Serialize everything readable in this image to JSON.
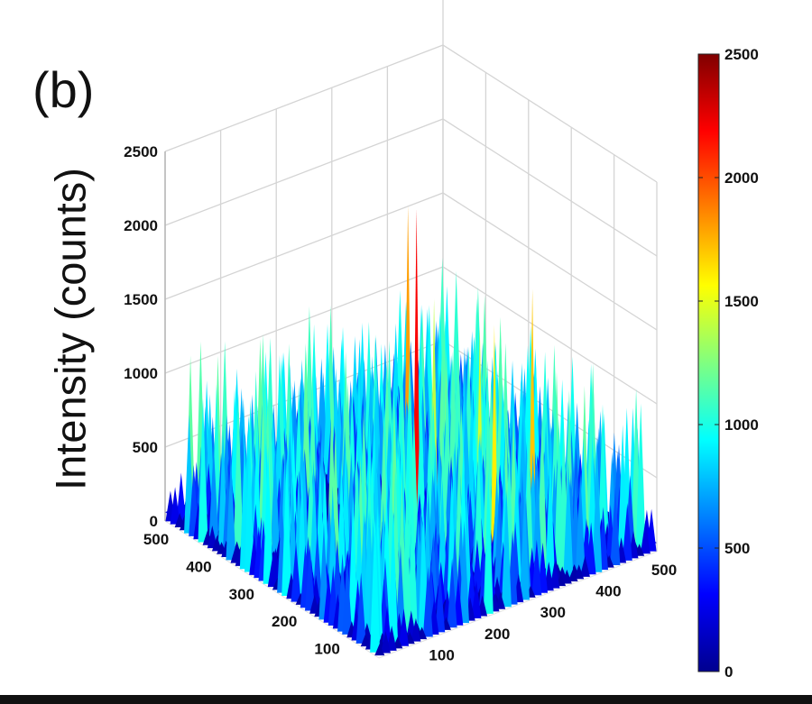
{
  "panel_label": "(b)",
  "chart_data": {
    "type": "surface3d",
    "zlabel": "Intensity (counts)",
    "z_ticks": [
      "0",
      "500",
      "1000",
      "1500",
      "2000",
      "2500"
    ],
    "x_ticks": [
      "100",
      "200",
      "300",
      "400",
      "500"
    ],
    "y_ticks": [
      "100",
      "200",
      "300",
      "400",
      "500"
    ],
    "xlim": [
      0,
      500
    ],
    "ylim": [
      0,
      500
    ],
    "zlim": [
      0,
      2500
    ],
    "colorbar": {
      "range": [
        0,
        2500
      ],
      "ticks": [
        "0",
        "500",
        "1000",
        "1500",
        "2000",
        "2500"
      ],
      "colormap": "jet"
    },
    "peaks": [
      {
        "x": 260,
        "y": 250,
        "z": 2200
      },
      {
        "x": 360,
        "y": 400,
        "z": 1800
      },
      {
        "x": 380,
        "y": 135,
        "z": 1700
      },
      {
        "x": 300,
        "y": 120,
        "z": 1600
      },
      {
        "x": 320,
        "y": 180,
        "z": 1450
      },
      {
        "x": 330,
        "y": 300,
        "z": 1400
      }
    ],
    "grid": true
  },
  "colors": {
    "jet": [
      "#00008f",
      "#0000ff",
      "#0080ff",
      "#00ffff",
      "#80ff80",
      "#ffff00",
      "#ff8000",
      "#ff0000",
      "#800000"
    ]
  }
}
